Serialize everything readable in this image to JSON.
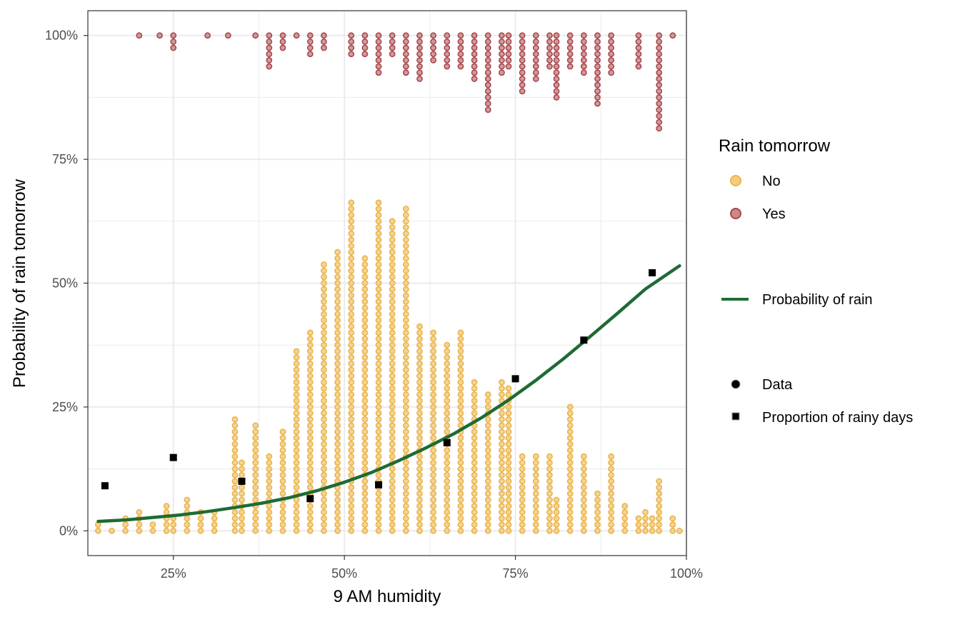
{
  "chart_data": {
    "type": "scatter",
    "xlabel": "9 AM humidity",
    "ylabel": "Probability of rain tomorrow",
    "xlim": [
      0.125,
      1.0
    ],
    "ylim": [
      -0.05,
      1.05
    ],
    "x_ticks": [
      0.25,
      0.5,
      0.75,
      1.0
    ],
    "x_tick_labels": [
      "25%",
      "50%",
      "75%",
      "100%"
    ],
    "y_ticks": [
      0,
      0.25,
      0.5,
      0.75,
      1.0
    ],
    "y_tick_labels": [
      "0%",
      "25%",
      "50%",
      "75%",
      "100%"
    ],
    "grid": true,
    "legend_position": "right",
    "dot_spacing": 0.0125,
    "dotplot_bins": [
      [
        0.14,
        2,
        0
      ],
      [
        0.16,
        1,
        0
      ],
      [
        0.18,
        3,
        0
      ],
      [
        0.2,
        4,
        1
      ],
      [
        0.22,
        2,
        0
      ],
      [
        0.23,
        0,
        1
      ],
      [
        0.24,
        5,
        0
      ],
      [
        0.25,
        3,
        3
      ],
      [
        0.27,
        6,
        0
      ],
      [
        0.29,
        4,
        0
      ],
      [
        0.3,
        0,
        1
      ],
      [
        0.31,
        4,
        0
      ],
      [
        0.33,
        0,
        1
      ],
      [
        0.34,
        19,
        0
      ],
      [
        0.35,
        12,
        0
      ],
      [
        0.37,
        18,
        1
      ],
      [
        0.39,
        13,
        6
      ],
      [
        0.41,
        17,
        3
      ],
      [
        0.43,
        30,
        1
      ],
      [
        0.45,
        33,
        4
      ],
      [
        0.47,
        44,
        3
      ],
      [
        0.49,
        46,
        0
      ],
      [
        0.51,
        54,
        4
      ],
      [
        0.53,
        45,
        4
      ],
      [
        0.55,
        54,
        7
      ],
      [
        0.57,
        51,
        4
      ],
      [
        0.59,
        53,
        7
      ],
      [
        0.61,
        34,
        8
      ],
      [
        0.63,
        33,
        5
      ],
      [
        0.65,
        31,
        6
      ],
      [
        0.67,
        33,
        6
      ],
      [
        0.69,
        25,
        8
      ],
      [
        0.71,
        23,
        13
      ],
      [
        0.73,
        25,
        7
      ],
      [
        0.74,
        24,
        6
      ],
      [
        0.76,
        13,
        10
      ],
      [
        0.78,
        13,
        8
      ],
      [
        0.8,
        13,
        6
      ],
      [
        0.81,
        6,
        11
      ],
      [
        0.83,
        21,
        6
      ],
      [
        0.85,
        13,
        7
      ],
      [
        0.87,
        7,
        12
      ],
      [
        0.89,
        13,
        7
      ],
      [
        0.91,
        5,
        0
      ],
      [
        0.93,
        3,
        6
      ],
      [
        0.94,
        4,
        0
      ],
      [
        0.95,
        3,
        0
      ],
      [
        0.96,
        9,
        16
      ],
      [
        0.98,
        3,
        1
      ],
      [
        0.99,
        1,
        0
      ]
    ],
    "series": [
      {
        "name": "Probability of rain",
        "kind": "curve",
        "color": "#1e6b34",
        "x": [
          0.14,
          0.18,
          0.22,
          0.26,
          0.3,
          0.34,
          0.38,
          0.42,
          0.46,
          0.5,
          0.54,
          0.58,
          0.62,
          0.66,
          0.7,
          0.74,
          0.78,
          0.82,
          0.86,
          0.9,
          0.94,
          0.99
        ],
        "y": [
          0.019,
          0.022,
          0.027,
          0.032,
          0.039,
          0.047,
          0.056,
          0.067,
          0.081,
          0.098,
          0.118,
          0.142,
          0.168,
          0.196,
          0.228,
          0.264,
          0.304,
          0.347,
          0.393,
          0.44,
          0.488,
          0.535
        ]
      },
      {
        "name": "Proportion of rainy days",
        "kind": "square",
        "color": "#000000",
        "x": [
          0.15,
          0.25,
          0.35,
          0.45,
          0.55,
          0.65,
          0.75,
          0.85,
          0.95
        ],
        "y": [
          0.091,
          0.148,
          0.1,
          0.065,
          0.093,
          0.178,
          0.307,
          0.385,
          0.521
        ]
      }
    ],
    "colors": {
      "no_fill": "#f5cc7f",
      "no_stroke": "#e9b54e",
      "yes_fill": "#c98a8a",
      "yes_stroke": "#a8474f",
      "curve": "#1e6b34",
      "square": "#000000",
      "grid": "#ebebeb",
      "panel_border": "#333333"
    },
    "legend": {
      "title": "Rain tomorrow",
      "no_label": "No",
      "yes_label": "Yes",
      "curve_label": "Probability of rain",
      "data_label": "Data",
      "proportion_label": "Proportion of rainy days"
    }
  }
}
